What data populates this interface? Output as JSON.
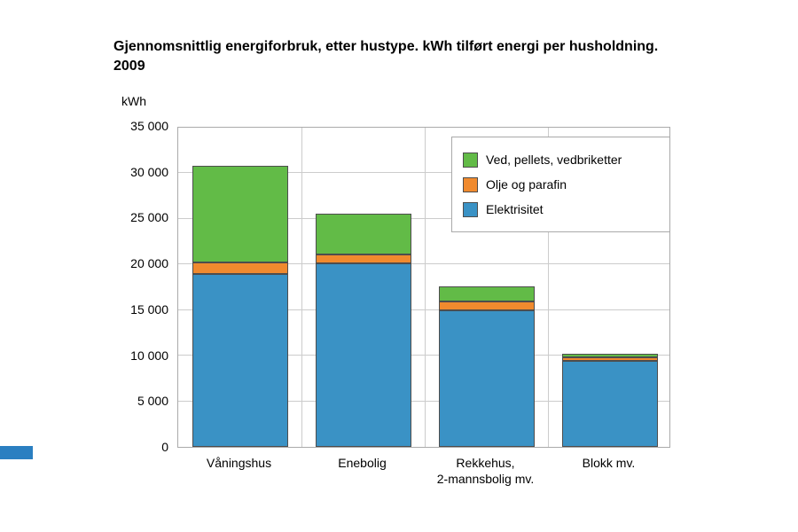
{
  "chart": {
    "title": "Gjennomsnittlig energiforbruk, etter hustype. kWh tilført energi per husholdning. 2009",
    "ylabel": "kWh"
  },
  "chart_data": {
    "type": "bar",
    "stacked": true,
    "title": "Gjennomsnittlig energiforbruk, etter hustype. kWh tilført energi per husholdning. 2009",
    "xlabel": "",
    "ylabel": "kWh",
    "ylim": [
      0,
      35000
    ],
    "grid": true,
    "legend_position": "top-right",
    "yticks": [
      {
        "value": 0,
        "label": "0"
      },
      {
        "value": 5000,
        "label": "5 000"
      },
      {
        "value": 10000,
        "label": "10 000"
      },
      {
        "value": 15000,
        "label": "15 000"
      },
      {
        "value": 20000,
        "label": "20 000"
      },
      {
        "value": 25000,
        "label": "25 000"
      },
      {
        "value": 30000,
        "label": "30 000"
      },
      {
        "value": 35000,
        "label": "35 000"
      }
    ],
    "categories": [
      "Våningshus",
      "Enebolig",
      "Rekkehus,\n2-mannsbolig mv.",
      "Blokk mv."
    ],
    "series": [
      {
        "name": "Elektrisitet",
        "color": "#3a92c5",
        "values": [
          19000,
          20100,
          15000,
          9400
        ]
      },
      {
        "name": "Olje og parafin",
        "color": "#f08a2e",
        "values": [
          1200,
          1000,
          900,
          400
        ]
      },
      {
        "name": "Ved, pellets, vedbriketter",
        "color": "#62bb47",
        "values": [
          10600,
          4500,
          1700,
          400
        ]
      }
    ]
  }
}
